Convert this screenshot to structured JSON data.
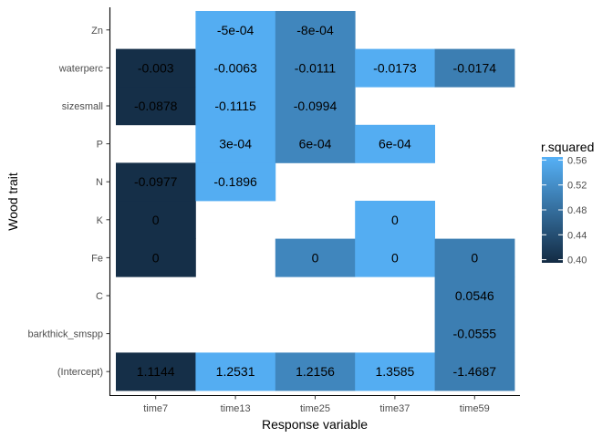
{
  "chart_data": {
    "type": "heatmap",
    "title": "",
    "xlabel": "Response variable",
    "ylabel": "Wood trait",
    "x_categories": [
      "time7",
      "time13",
      "time25",
      "time37",
      "time59"
    ],
    "y_categories": [
      "(Intercept)",
      "barkthick_smspp",
      "C",
      "Fe",
      "K",
      "N",
      "P",
      "sizesmall",
      "waterperc",
      "Zn"
    ],
    "legend": {
      "title": "r.squared",
      "ticks": [
        "0.40",
        "0.44",
        "0.48",
        "0.52",
        "0.56"
      ],
      "tick_values": [
        0.4,
        0.44,
        0.48,
        0.52,
        0.56
      ],
      "range": [
        0.395,
        0.565
      ],
      "color_low": "#132B43",
      "color_high": "#56B1F7",
      "placement": "right"
    },
    "grid": false,
    "cells": [
      {
        "x": "time7",
        "y": "(Intercept)",
        "label": "1.1144",
        "r2": 0.4
      },
      {
        "x": "time13",
        "y": "(Intercept)",
        "label": "1.2531",
        "r2": 0.56
      },
      {
        "x": "time25",
        "y": "(Intercept)",
        "label": "1.2156",
        "r2": 0.51
      },
      {
        "x": "time37",
        "y": "(Intercept)",
        "label": "1.3585",
        "r2": 0.56
      },
      {
        "x": "time59",
        "y": "(Intercept)",
        "label": "-1.4687",
        "r2": 0.5
      },
      {
        "x": "time59",
        "y": "barkthick_smspp",
        "label": "-0.0555",
        "r2": 0.5
      },
      {
        "x": "time59",
        "y": "C",
        "label": "0.0546",
        "r2": 0.5
      },
      {
        "x": "time7",
        "y": "Fe",
        "label": "0",
        "r2": 0.4
      },
      {
        "x": "time25",
        "y": "Fe",
        "label": "0",
        "r2": 0.51
      },
      {
        "x": "time37",
        "y": "Fe",
        "label": "0",
        "r2": 0.56
      },
      {
        "x": "time59",
        "y": "Fe",
        "label": "0",
        "r2": 0.5
      },
      {
        "x": "time7",
        "y": "K",
        "label": "0",
        "r2": 0.4
      },
      {
        "x": "time37",
        "y": "K",
        "label": "0",
        "r2": 0.56
      },
      {
        "x": "time7",
        "y": "N",
        "label": "-0.0977",
        "r2": 0.4
      },
      {
        "x": "time13",
        "y": "N",
        "label": "-0.1896",
        "r2": 0.56
      },
      {
        "x": "time13",
        "y": "P",
        "label": "3e-04",
        "r2": 0.56
      },
      {
        "x": "time25",
        "y": "P",
        "label": "6e-04",
        "r2": 0.51
      },
      {
        "x": "time37",
        "y": "P",
        "label": "6e-04",
        "r2": 0.56
      },
      {
        "x": "time7",
        "y": "sizesmall",
        "label": "-0.0878",
        "r2": 0.4
      },
      {
        "x": "time13",
        "y": "sizesmall",
        "label": "-0.1115",
        "r2": 0.56
      },
      {
        "x": "time25",
        "y": "sizesmall",
        "label": "-0.0994",
        "r2": 0.51
      },
      {
        "x": "time7",
        "y": "waterperc",
        "label": "-0.003",
        "r2": 0.4
      },
      {
        "x": "time13",
        "y": "waterperc",
        "label": "-0.0063",
        "r2": 0.56
      },
      {
        "x": "time25",
        "y": "waterperc",
        "label": "-0.0111",
        "r2": 0.51
      },
      {
        "x": "time37",
        "y": "waterperc",
        "label": "-0.0173",
        "r2": 0.56
      },
      {
        "x": "time59",
        "y": "waterperc",
        "label": "-0.0174",
        "r2": 0.5
      },
      {
        "x": "time13",
        "y": "Zn",
        "label": "-5e-04",
        "r2": 0.56
      },
      {
        "x": "time25",
        "y": "Zn",
        "label": "-8e-04",
        "r2": 0.51
      }
    ]
  }
}
